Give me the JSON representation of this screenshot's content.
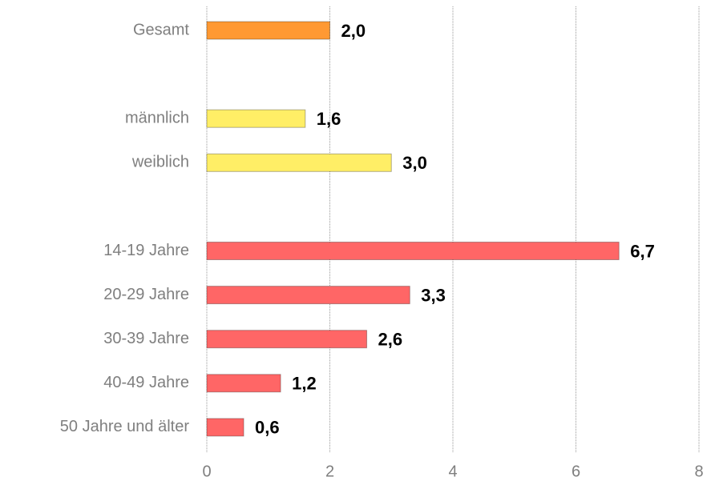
{
  "chart_data": {
    "type": "hbar",
    "categories": [
      "Gesamt",
      null,
      "männlich",
      "weiblich",
      null,
      "14-19 Jahre",
      "20-29 Jahre",
      "30-39 Jahre",
      "40-49 Jahre",
      "50 Jahre und älter"
    ],
    "values": [
      2.0,
      null,
      1.6,
      3.0,
      null,
      6.7,
      3.3,
      2.6,
      1.2,
      0.6
    ],
    "value_labels": [
      "2,0",
      null,
      "1,6",
      "3,0",
      null,
      "6,7",
      "3,3",
      "2,6",
      "1,2",
      "0,6"
    ],
    "colors": [
      "#ff9933",
      null,
      "#ffee66",
      "#ffee66",
      null,
      "#ff6666",
      "#ff6666",
      "#ff6666",
      "#ff6666",
      "#ff6666"
    ],
    "xlim": [
      0,
      8
    ],
    "xticks": [
      0,
      2,
      4,
      6,
      8
    ],
    "grid": true
  }
}
